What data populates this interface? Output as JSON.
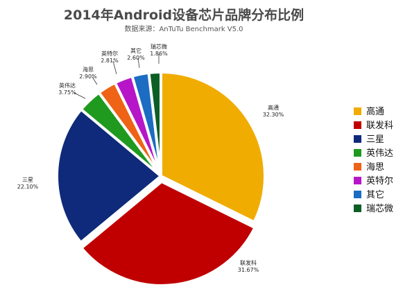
{
  "chart_data": {
    "type": "pie",
    "title": "2014年Android设备芯片品牌分布比例",
    "subtitle": "数据来源：AnTuTu Benchmark V5.0",
    "legend_position": "right",
    "slices": [
      {
        "name": "高通",
        "value": 32.3,
        "label": "32.30%",
        "color": "#f0ac00"
      },
      {
        "name": "联发科",
        "value": 31.67,
        "label": "31.67%",
        "color": "#c00000"
      },
      {
        "name": "三星",
        "value": 22.1,
        "label": "22.10%",
        "color": "#0f2a7a"
      },
      {
        "name": "英伟达",
        "value": 3.75,
        "label": "3.75%",
        "color": "#1f9a1f"
      },
      {
        "name": "海思",
        "value": 2.9,
        "label": "2.90%",
        "color": "#ee6316"
      },
      {
        "name": "英特尔",
        "value": 2.81,
        "label": "2.81%",
        "color": "#b616c8"
      },
      {
        "name": "其它",
        "value": 2.6,
        "label": "2.60%",
        "color": "#1b6cc2"
      },
      {
        "name": "瑞芯微",
        "value": 1.86,
        "label": "1.86%",
        "color": "#0c5f24"
      }
    ]
  }
}
